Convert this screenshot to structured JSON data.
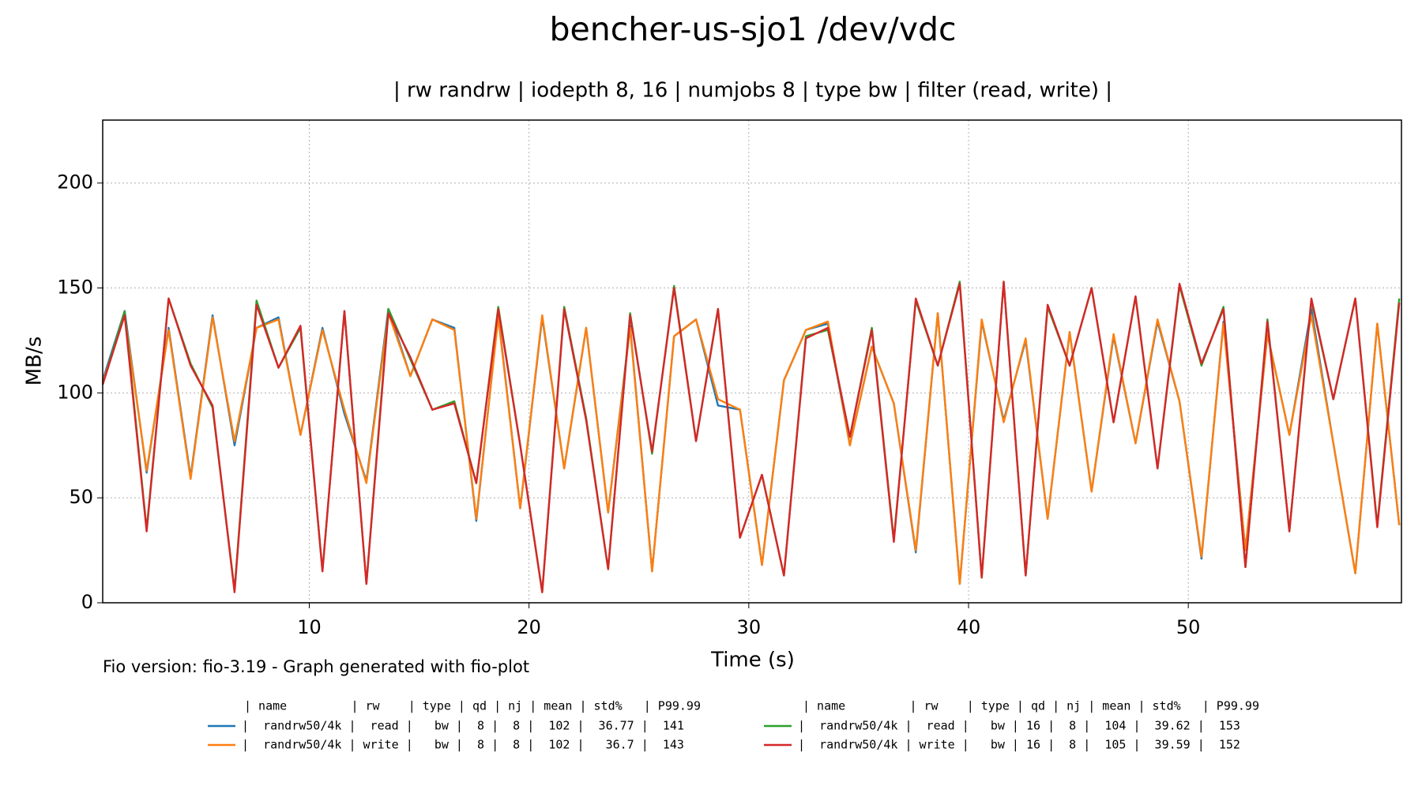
{
  "chart_data": {
    "type": "line",
    "title": "bencher-us-sjo1 /dev/vdc",
    "subtitle": "| rw randrw | iodepth 8, 16 | numjobs 8 | type bw | filter (read, write) |",
    "x_label": "Time (s)",
    "y_label": "MB/s",
    "footnote": "Fio version: fio-3.19 - Graph generated with fio-plot",
    "legend_headers": [
      "| name         | rw    | type | qd | nj | mean | std%   | P99.99",
      "| name         | rw    | type | qd | nj | mean | std%   | P99.99"
    ],
    "xlim": [
      0.6,
      59.7
    ],
    "ylim": [
      0,
      230
    ],
    "xticks": [
      10,
      20,
      30,
      40,
      50
    ],
    "yticks": [
      0,
      50,
      100,
      150,
      200
    ],
    "grid": true,
    "x": [
      0.6,
      1.6,
      2.6,
      3.6,
      4.6,
      5.6,
      6.6,
      7.6,
      8.6,
      9.6,
      10.6,
      11.6,
      12.6,
      13.6,
      14.6,
      15.6,
      16.6,
      17.6,
      18.6,
      19.6,
      20.6,
      21.6,
      22.6,
      23.6,
      24.6,
      25.6,
      26.6,
      27.6,
      28.6,
      29.6,
      30.6,
      31.6,
      32.6,
      33.6,
      34.6,
      35.6,
      36.6,
      37.6,
      38.6,
      39.6,
      40.6,
      41.6,
      42.6,
      43.6,
      44.6,
      45.6,
      46.6,
      47.6,
      48.6,
      49.6,
      50.6,
      51.6,
      52.6,
      53.6,
      54.6,
      55.6,
      56.6,
      57.6,
      58.6,
      59.6
    ],
    "series": [
      {
        "name": "|  randrw50/4k |  read |   bw |  8 |  8 |  102 |  36.77 |  141",
        "color": "#1f77b4",
        "values": [
          106,
          139,
          62,
          131,
          60,
          137,
          75,
          131,
          136,
          80,
          131,
          90,
          58,
          140,
          108,
          135,
          131,
          39,
          137,
          45,
          136,
          64,
          131,
          43,
          132,
          15,
          127,
          135,
          94,
          92,
          18,
          106,
          130,
          133,
          75,
          122,
          95,
          24,
          138,
          9,
          134,
          87,
          125,
          40,
          129,
          53,
          127,
          76,
          134,
          96,
          21,
          134,
          25,
          128,
          80,
          140,
          76,
          14,
          133,
          37
        ]
      },
      {
        "name": "|  randrw50/4k | write |   bw |  8 |  8 |  102 |   36.7 |  143",
        "color": "#ff7f0e",
        "values": [
          105,
          137,
          63,
          130,
          59,
          136,
          77,
          131,
          135,
          80,
          130,
          92,
          57,
          138,
          108,
          135,
          130,
          40,
          136,
          45,
          137,
          64,
          131,
          43,
          131,
          15,
          127,
          135,
          97,
          92,
          18,
          106,
          130,
          134,
          75,
          122,
          95,
          25,
          138,
          9,
          135,
          86,
          126,
          40,
          129,
          53,
          128,
          76,
          135,
          96,
          22,
          133,
          25,
          128,
          80,
          137,
          76,
          14,
          133,
          37
        ]
      },
      {
        "name": "|  randrw50/4k |  read |   bw | 16 |  8 |  104 |  39.62 |  153",
        "color": "#2ca02c",
        "values": [
          104,
          139,
          35,
          145,
          114,
          93,
          6,
          144,
          112,
          131,
          15,
          139,
          9,
          140,
          116,
          92,
          96,
          57,
          141,
          75,
          5,
          141,
          88,
          16,
          138,
          71,
          151,
          77,
          140,
          31,
          61,
          13,
          127,
          130,
          79,
          131,
          30,
          144,
          113,
          153,
          12,
          153,
          13,
          141,
          113,
          150,
          86,
          146,
          64,
          151,
          113,
          141,
          17,
          135,
          34,
          144,
          97,
          145,
          37,
          145
        ]
      },
      {
        "name": "|  randrw50/4k | write |   bw | 16 |  8 |  105 |  39.59 |  152",
        "color": "#d62728",
        "values": [
          104,
          137,
          34,
          145,
          113,
          94,
          5,
          142,
          112,
          132,
          15,
          139,
          9,
          138,
          117,
          92,
          95,
          57,
          140,
          75,
          5,
          140,
          87,
          16,
          137,
          72,
          150,
          77,
          140,
          31,
          61,
          13,
          126,
          131,
          79,
          130,
          29,
          145,
          113,
          152,
          12,
          153,
          13,
          142,
          113,
          150,
          86,
          146,
          64,
          152,
          114,
          140,
          17,
          134,
          34,
          145,
          97,
          145,
          36,
          143
        ]
      }
    ]
  }
}
